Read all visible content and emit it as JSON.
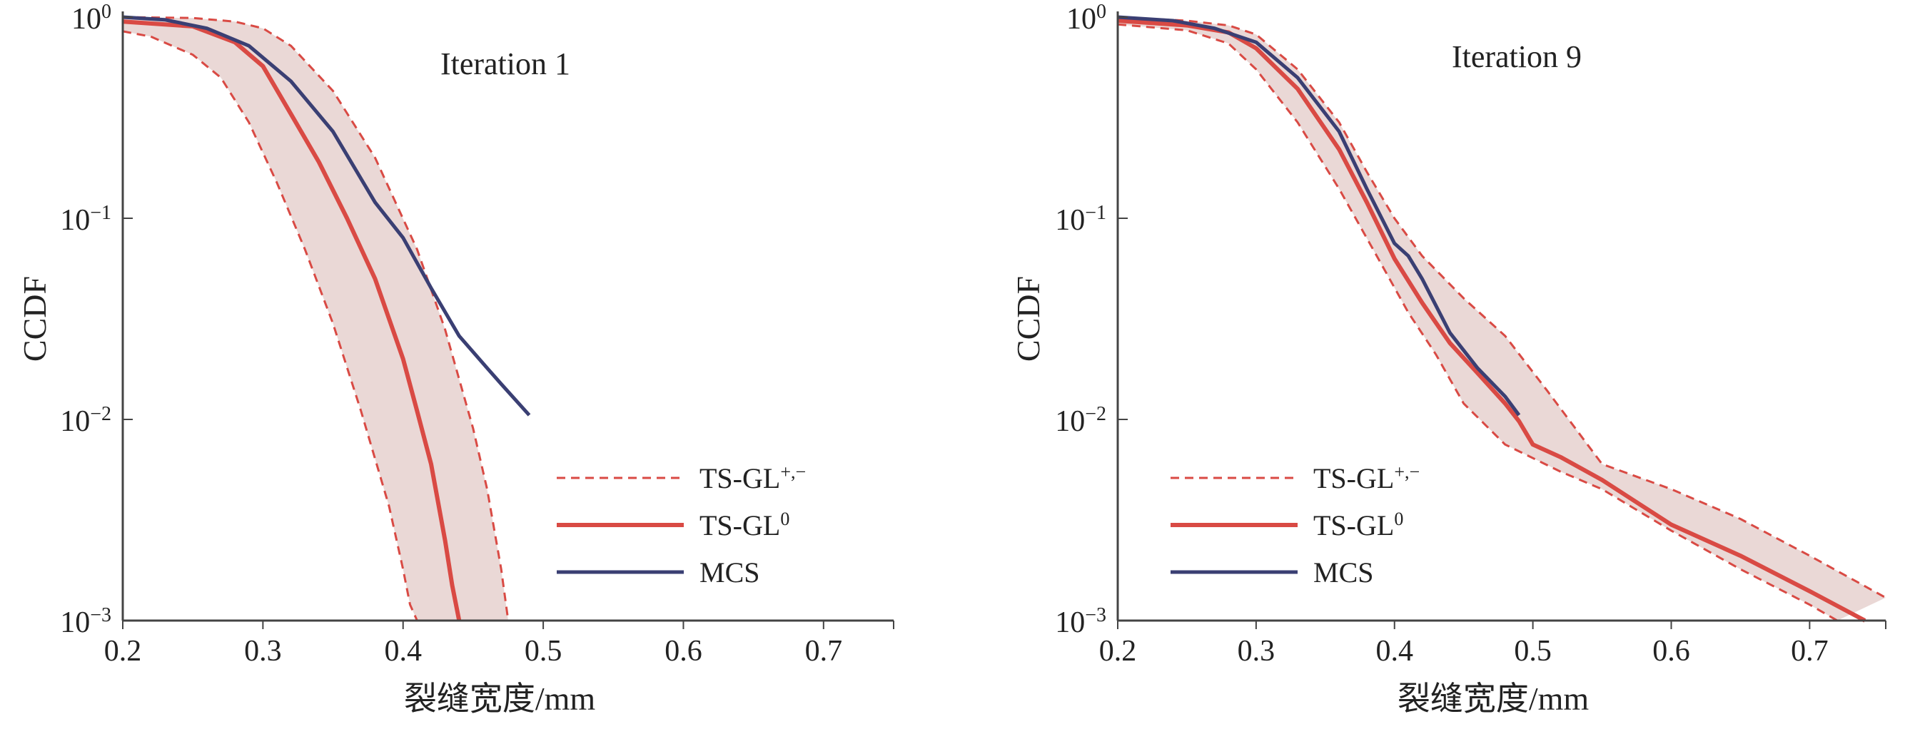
{
  "colors": {
    "ts_gl": "#d94a44",
    "mcs": "#3a3f73",
    "band_fill": "#ead8d6",
    "axis": "#444444"
  },
  "legend": {
    "bounds_label": "TS-GL",
    "bounds_sup": "+,−",
    "center_label": "TS-GL",
    "center_sup": "0",
    "mcs_label": "MCS"
  },
  "chart_data": [
    {
      "type": "line",
      "title": "Iteration 1",
      "xlabel": "裂缝宽度/mm",
      "ylabel": "CCDF",
      "xlim": [
        0.2,
        0.75
      ],
      "ylim": [
        0.001,
        1
      ],
      "yscale": "log",
      "grid": false,
      "legend_position": "bottom-right",
      "xticks": [
        "0.2",
        "0.3",
        "0.4",
        "0.5",
        "0.6",
        "0.7"
      ],
      "yticks": [
        {
          "base": "10",
          "exp": "0"
        },
        {
          "base": "10",
          "exp": "−1"
        },
        {
          "base": "10",
          "exp": "−2"
        },
        {
          "base": "10",
          "exp": "−3"
        }
      ],
      "series": [
        {
          "name": "TS-GL+,−",
          "role": "upper",
          "x": [
            0.2,
            0.25,
            0.28,
            0.3,
            0.32,
            0.35,
            0.38,
            0.41,
            0.43,
            0.45,
            0.46,
            0.47,
            0.475
          ],
          "y": [
            1.0,
            0.99,
            0.95,
            0.88,
            0.72,
            0.43,
            0.2,
            0.07,
            0.028,
            0.009,
            0.0045,
            0.0018,
            0.001
          ]
        },
        {
          "name": "TS-GL+,−",
          "role": "lower",
          "x": [
            0.2,
            0.22,
            0.25,
            0.27,
            0.29,
            0.31,
            0.33,
            0.35,
            0.37,
            0.39,
            0.4,
            0.405,
            0.41
          ],
          "y": [
            0.85,
            0.8,
            0.65,
            0.5,
            0.3,
            0.15,
            0.07,
            0.03,
            0.011,
            0.0037,
            0.0018,
            0.0012,
            0.001
          ]
        },
        {
          "name": "TS-GL0",
          "role": "center",
          "x": [
            0.2,
            0.25,
            0.28,
            0.3,
            0.32,
            0.34,
            0.36,
            0.38,
            0.4,
            0.41,
            0.42,
            0.43,
            0.435,
            0.44
          ],
          "y": [
            0.95,
            0.9,
            0.75,
            0.57,
            0.33,
            0.19,
            0.1,
            0.05,
            0.02,
            0.011,
            0.006,
            0.0025,
            0.0015,
            0.001
          ]
        },
        {
          "name": "MCS",
          "role": "mcs",
          "x": [
            0.2,
            0.23,
            0.26,
            0.29,
            0.32,
            0.35,
            0.38,
            0.4,
            0.42,
            0.44,
            0.46,
            0.47,
            0.49
          ],
          "y": [
            1.0,
            0.97,
            0.88,
            0.72,
            0.48,
            0.27,
            0.12,
            0.08,
            0.045,
            0.026,
            0.018,
            0.015,
            0.0105
          ]
        }
      ]
    },
    {
      "type": "line",
      "title": "Iteration 9",
      "xlabel": "裂缝宽度/mm",
      "ylabel": "CCDF",
      "xlim": [
        0.2,
        0.755
      ],
      "ylim": [
        0.001,
        1
      ],
      "yscale": "log",
      "grid": false,
      "legend_position": "bottom-right",
      "xticks": [
        "0.2",
        "0.3",
        "0.4",
        "0.5",
        "0.6",
        "0.7"
      ],
      "yticks": [
        {
          "base": "10",
          "exp": "0"
        },
        {
          "base": "10",
          "exp": "−1"
        },
        {
          "base": "10",
          "exp": "−2"
        },
        {
          "base": "10",
          "exp": "−3"
        }
      ],
      "series": [
        {
          "name": "TS-GL+,−",
          "role": "upper",
          "x": [
            0.2,
            0.25,
            0.28,
            0.3,
            0.33,
            0.36,
            0.38,
            0.4,
            0.42,
            0.45,
            0.48,
            0.51,
            0.55,
            0.6,
            0.65,
            0.7,
            0.755
          ],
          "y": [
            1.0,
            0.96,
            0.91,
            0.82,
            0.55,
            0.3,
            0.17,
            0.1,
            0.065,
            0.04,
            0.026,
            0.014,
            0.006,
            0.0045,
            0.0032,
            0.0021,
            0.0013
          ]
        },
        {
          "name": "TS-GL+,−",
          "role": "lower",
          "x": [
            0.2,
            0.25,
            0.28,
            0.3,
            0.33,
            0.36,
            0.39,
            0.41,
            0.43,
            0.45,
            0.48,
            0.52,
            0.55,
            0.6,
            0.65,
            0.7,
            0.72
          ],
          "y": [
            0.92,
            0.86,
            0.74,
            0.55,
            0.3,
            0.14,
            0.06,
            0.034,
            0.021,
            0.012,
            0.0075,
            0.0055,
            0.0045,
            0.0028,
            0.0018,
            0.0012,
            0.001
          ]
        },
        {
          "name": "TS-GL0",
          "role": "center",
          "x": [
            0.2,
            0.25,
            0.28,
            0.3,
            0.33,
            0.36,
            0.38,
            0.4,
            0.42,
            0.44,
            0.46,
            0.48,
            0.49,
            0.5,
            0.52,
            0.55,
            0.6,
            0.65,
            0.7,
            0.74
          ],
          "y": [
            0.96,
            0.91,
            0.84,
            0.7,
            0.44,
            0.22,
            0.12,
            0.063,
            0.038,
            0.024,
            0.017,
            0.012,
            0.0098,
            0.0075,
            0.0065,
            0.005,
            0.003,
            0.0021,
            0.0014,
            0.001
          ]
        },
        {
          "name": "MCS",
          "role": "mcs",
          "x": [
            0.2,
            0.24,
            0.27,
            0.3,
            0.33,
            0.36,
            0.38,
            0.4,
            0.41,
            0.42,
            0.44,
            0.46,
            0.48,
            0.49
          ],
          "y": [
            1.0,
            0.96,
            0.88,
            0.75,
            0.5,
            0.27,
            0.14,
            0.075,
            0.065,
            0.05,
            0.027,
            0.018,
            0.013,
            0.0105
          ]
        }
      ]
    }
  ]
}
